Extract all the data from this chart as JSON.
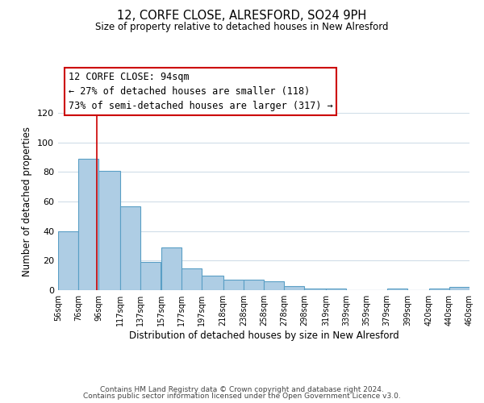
{
  "title": "12, CORFE CLOSE, ALRESFORD, SO24 9PH",
  "subtitle": "Size of property relative to detached houses in New Alresford",
  "xlabel": "Distribution of detached houses by size in New Alresford",
  "ylabel": "Number of detached properties",
  "bar_left_edges": [
    56,
    76,
    96,
    117,
    137,
    157,
    177,
    197,
    218,
    238,
    258,
    278,
    298,
    319,
    339,
    359,
    379,
    399,
    420,
    440
  ],
  "bar_widths": [
    20,
    20,
    21,
    20,
    20,
    20,
    20,
    21,
    20,
    20,
    20,
    20,
    21,
    20,
    20,
    20,
    20,
    21,
    20,
    20
  ],
  "bar_heights": [
    40,
    89,
    81,
    57,
    19,
    29,
    15,
    10,
    7,
    7,
    6,
    3,
    1,
    1,
    0,
    0,
    1,
    0,
    1,
    2
  ],
  "bar_color": "#aecde4",
  "bar_edge_color": "#5a9fc5",
  "ylim": [
    0,
    120
  ],
  "yticks": [
    0,
    20,
    40,
    60,
    80,
    100,
    120
  ],
  "xlim": [
    56,
    460
  ],
  "xtick_labels": [
    "56sqm",
    "76sqm",
    "96sqm",
    "117sqm",
    "137sqm",
    "157sqm",
    "177sqm",
    "197sqm",
    "218sqm",
    "238sqm",
    "258sqm",
    "278sqm",
    "298sqm",
    "319sqm",
    "339sqm",
    "359sqm",
    "379sqm",
    "399sqm",
    "420sqm",
    "440sqm",
    "460sqm"
  ],
  "xtick_positions": [
    56,
    76,
    96,
    117,
    137,
    157,
    177,
    197,
    218,
    238,
    258,
    278,
    298,
    319,
    339,
    359,
    379,
    399,
    420,
    440,
    460
  ],
  "vline_x": 94,
  "vline_color": "#cc0000",
  "annotation_title": "12 CORFE CLOSE: 94sqm",
  "annotation_line1": "← 27% of detached houses are smaller (118)",
  "annotation_line2": "73% of semi-detached houses are larger (317) →",
  "annotation_box_color": "#ffffff",
  "annotation_box_edge_color": "#cc0000",
  "footer_line1": "Contains HM Land Registry data © Crown copyright and database right 2024.",
  "footer_line2": "Contains public sector information licensed under the Open Government Licence v3.0.",
  "background_color": "#ffffff",
  "grid_color": "#d0dde8"
}
